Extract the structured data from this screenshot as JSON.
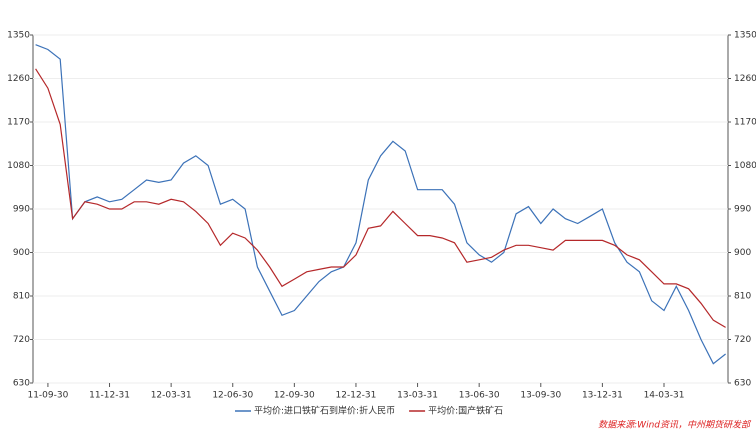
{
  "chart_data": {
    "type": "line",
    "categories": [
      null,
      "11-09-30",
      null,
      null,
      null,
      null,
      "11-12-31",
      null,
      null,
      null,
      null,
      "12-03-31",
      null,
      null,
      null,
      null,
      "12-06-30",
      null,
      null,
      null,
      null,
      "12-09-30",
      null,
      null,
      null,
      null,
      "12-12-31",
      null,
      null,
      null,
      null,
      "13-03-31",
      null,
      null,
      null,
      null,
      "13-06-30",
      null,
      null,
      null,
      null,
      "13-09-30",
      null,
      null,
      null,
      null,
      "13-12-31",
      null,
      null,
      null,
      null,
      "14-03-31",
      null,
      null,
      null,
      null,
      null
    ],
    "series": [
      {
        "name": "平均价:进口铁矿石到岸价:折人民币",
        "color": "#3c72b8",
        "values": [
          1330,
          1320,
          1300,
          970,
          1005,
          1015,
          1005,
          1010,
          1030,
          1050,
          1045,
          1050,
          1085,
          1100,
          1080,
          1000,
          1010,
          990,
          870,
          820,
          770,
          780,
          810,
          840,
          860,
          870,
          920,
          1050,
          1100,
          1130,
          1110,
          1030,
          1030,
          1030,
          1000,
          920,
          895,
          880,
          900,
          980,
          995,
          960,
          990,
          970,
          960,
          975,
          990,
          920,
          880,
          860,
          800,
          780,
          830,
          780,
          720,
          670,
          690
        ]
      },
      {
        "name": "平均价:国产铁矿石",
        "color": "#b5282a",
        "values": [
          1280,
          1240,
          1165,
          970,
          1005,
          1000,
          990,
          990,
          1005,
          1005,
          1000,
          1010,
          1005,
          985,
          960,
          915,
          940,
          930,
          905,
          870,
          830,
          845,
          860,
          865,
          870,
          870,
          895,
          950,
          955,
          985,
          960,
          935,
          935,
          930,
          920,
          880,
          885,
          890,
          905,
          915,
          915,
          910,
          905,
          925,
          925,
          925,
          925,
          915,
          895,
          885,
          860,
          835,
          835,
          825,
          795,
          760,
          745
        ]
      }
    ],
    "ylim": [
      630,
      1350
    ],
    "yticks": [
      630,
      720,
      810,
      900,
      990,
      1080,
      1170,
      1260,
      1350
    ],
    "y2lim": [
      630,
      1350
    ],
    "y2ticks": [
      630,
      720,
      810,
      900,
      990,
      1080,
      1170,
      1260,
      1350
    ],
    "grid": true,
    "source": "数据来源:Wind资讯，中州期货研发部"
  }
}
